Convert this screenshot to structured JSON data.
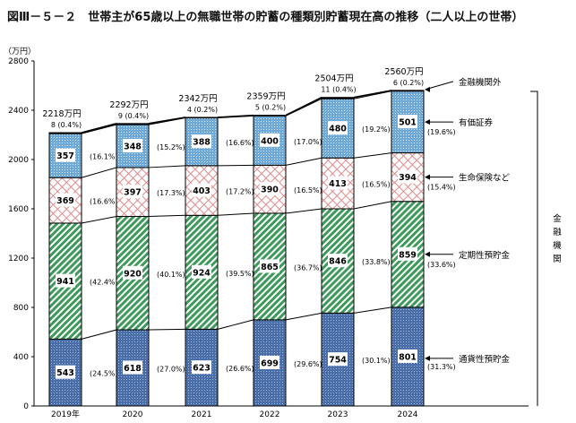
{
  "title": "図Ⅲ－５－２　世帯主が65歳以上の無職世帯の貯蓄の種類別貯蓄現在高の推移（二人以上の世帯）",
  "chart_data": {
    "type": "bar",
    "stacked": true,
    "title": "図Ⅲ－５－２　世帯主が65歳以上の無職世帯の貯蓄の種類別貯蓄現在高の推移（二人以上の世帯）",
    "ylabel": "（万円）",
    "ylim": [
      0,
      2800
    ],
    "yticks": [
      0,
      400,
      800,
      1200,
      1600,
      2000,
      2400,
      2800
    ],
    "categories": [
      "2019年",
      "2020",
      "2021",
      "2022",
      "2023",
      "2024"
    ],
    "totals": [
      "2218万円",
      "2292万円",
      "2342万円",
      "2359万円",
      "2504万円",
      "2560万円"
    ],
    "series": [
      {
        "name": "通貨性預貯金",
        "color": "#4a6fa8",
        "values": [
          543,
          618,
          623,
          699,
          754,
          801
        ],
        "shares": [
          "(24.5%)",
          "(27.0%)",
          "(26.6%)",
          "(29.6%)",
          "(30.1%)",
          "(31.3%)"
        ]
      },
      {
        "name": "定期性預貯金",
        "color": "#3c9a5a",
        "values": [
          941,
          920,
          924,
          865,
          846,
          859
        ],
        "shares": [
          "(42.4%)",
          "(40.1%)",
          "(39.5%)",
          "(36.7%)",
          "(33.8%)",
          "(33.6%)"
        ]
      },
      {
        "name": "生命保険など",
        "color": "#e08a8a",
        "values": [
          369,
          397,
          403,
          390,
          413,
          394
        ],
        "shares": [
          "(16.6%)",
          "(17.3%)",
          "(17.2%)",
          "(16.5%)",
          "(16.5%)",
          "(15.4%)"
        ]
      },
      {
        "name": "有価証券",
        "color": "#6fa9d8",
        "values": [
          357,
          348,
          388,
          400,
          480,
          501
        ],
        "shares": [
          "(16.1%)",
          "(15.2%)",
          "(16.6%)",
          "(17.0%)",
          "(19.2%)",
          "(19.6%)"
        ]
      },
      {
        "name": "金融機関外",
        "color": "#000000",
        "values": [
          8,
          9,
          4,
          5,
          11,
          6
        ],
        "shares": [
          "(0.4%)",
          "(0.4%)",
          "(0.2%)",
          "(0.2%)",
          "(0.4%)",
          "(0.2%)"
        ]
      }
    ],
    "bracket_label": "金融機関",
    "grid": false,
    "legend": "right"
  }
}
